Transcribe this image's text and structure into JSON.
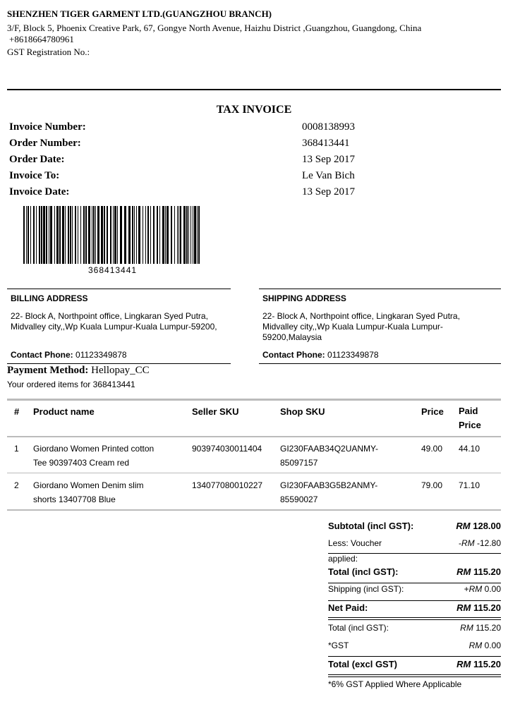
{
  "company": {
    "name": "SHENZHEN TIGER GARMENT LTD.(GUANGZHOU BRANCH)",
    "address": "3/F, Block 5, Phoenix Creative Park, 67, Gongye North Avenue, Haizhu District ,Guangzhou, Guangdong, China",
    "phone": "+8618664780961",
    "gst": "GST Registration No.:"
  },
  "title": "TAX INVOICE",
  "meta": [
    {
      "label": "Invoice Number:",
      "value": "0008138993"
    },
    {
      "label": "Order Number:",
      "value": "368413441"
    },
    {
      "label": "Order Date:",
      "value": "13 Sep 2017"
    },
    {
      "label": "Invoice To:",
      "value": "Le Van Bich"
    },
    {
      "label": "Invoice Date:",
      "value": "13 Sep 2017"
    }
  ],
  "barcode_text": "368413441",
  "billing": {
    "title": "BILLING ADDRESS",
    "line1": "22- Block A, Northpoint office, Lingkaran Syed Putra,",
    "line2": "Midvalley city,,Wp Kuala Lumpur-Kuala Lumpur-59200,",
    "line3": "",
    "contact_label": "Contact Phone:",
    "contact": "01123349878"
  },
  "shipping": {
    "title": "SHIPPING ADDRESS",
    "line1": "22- Block A, Northpoint office, Lingkaran Syed Putra,",
    "line2": "Midvalley city,,Wp Kuala Lumpur-Kuala Lumpur-",
    "line3": "59200,Malaysia",
    "contact_label": "Contact Phone:",
    "contact": "01123349878"
  },
  "payment": {
    "label": "Payment Method:",
    "value": "Hellopay_CC",
    "ordered": "Your ordered items for 368413441"
  },
  "table": {
    "headers": [
      "#",
      "Product name",
      "Seller SKU",
      "Shop SKU",
      "Price",
      "Paid Price"
    ],
    "rows": [
      {
        "n": "1",
        "name1": "Giordano Women Printed cotton",
        "name2": "Tee 90397403 Cream red",
        "seller": "903974030011404",
        "shop1": "GI230FAAB34Q2UANMY-",
        "shop2": "85097157",
        "price": "49.00",
        "paid": "44.10"
      },
      {
        "n": "2",
        "name1": "Giordano Women Denim slim",
        "name2": "shorts 13407708 Blue",
        "seller": "134077080010227",
        "shop1": "GI230FAAB3G5B2ANMY-",
        "shop2": "85590027",
        "price": "79.00",
        "paid": "71.10"
      }
    ]
  },
  "totals": {
    "subtotal": {
      "label": "Subtotal (incl GST):",
      "cur": "RM",
      "amt": "128.00"
    },
    "voucher": {
      "label1": "Less: Voucher",
      "label2": "applied:",
      "pre": "-",
      "cur": "RM",
      "amt": "-12.80"
    },
    "total": {
      "label": "Total (incl GST):",
      "cur": "RM",
      "amt": "115.20"
    },
    "shipping": {
      "label": "Shipping (incl GST):",
      "pre": "+",
      "cur": "RM",
      "amt": "0.00"
    },
    "net": {
      "label": "Net Paid:",
      "cur": "RM",
      "amt": "115.20"
    },
    "total2": {
      "label": "Total (incl GST):",
      "cur": "RM",
      "amt": "115.20"
    },
    "gst": {
      "label": "*GST",
      "cur": "RM",
      "amt": "0.00"
    },
    "excl": {
      "label": "Total (excl GST)",
      "cur": "RM",
      "amt": "115.20"
    },
    "note": "*6% GST Applied Where Applicable"
  }
}
